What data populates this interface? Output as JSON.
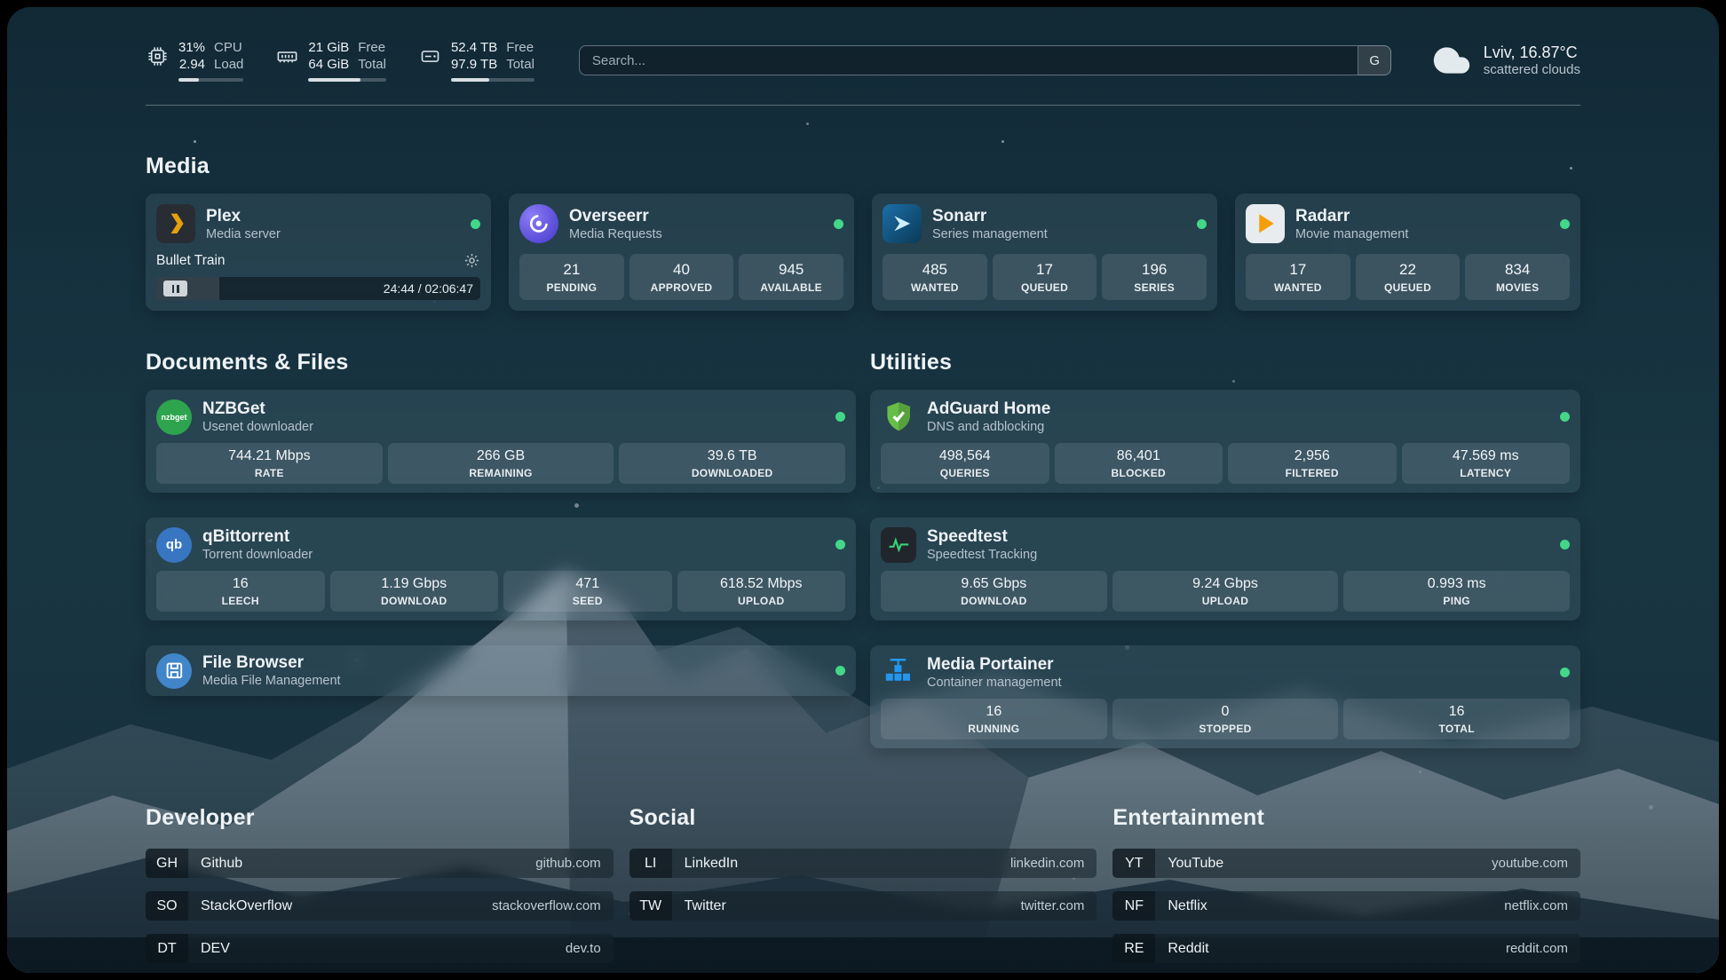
{
  "colors": {
    "status_online": "#43d787",
    "page_tint": "#16323f",
    "plex_accent": "#e5a00d",
    "adguard_green": "#68bd49"
  },
  "topbar": {
    "cpu": {
      "icon": "cpu-chip-icon",
      "value1": "31%",
      "value2": "2.94",
      "label1": "CPU",
      "label2": "Load",
      "percent": 31
    },
    "memory": {
      "icon": "memory-icon",
      "value1": "21 GiB",
      "value2": "64 GiB",
      "label1": "Free",
      "label2": "Total",
      "percent": 67
    },
    "disk": {
      "icon": "disk-icon",
      "value1": "52.4 TB",
      "value2": "97.9 TB",
      "label1": "Free",
      "label2": "Total",
      "percent": 46
    },
    "search": {
      "placeholder": "Search...",
      "provider_label": "G"
    },
    "weather": {
      "icon": "cloud-icon",
      "location": "Lviv, 16.87°C",
      "condition": "scattered clouds"
    }
  },
  "sections": {
    "media": "Media",
    "documents": "Documents & Files",
    "utilities": "Utilities",
    "developer": "Developer",
    "social": "Social",
    "entertainment": "Entertainment"
  },
  "services": {
    "plex": {
      "name": "Plex",
      "description": "Media server",
      "status": "online",
      "now_playing": "Bullet Train",
      "time": "24:44 / 02:06:47",
      "progress_percent": 19.5
    },
    "overseerr": {
      "name": "Overseerr",
      "description": "Media Requests",
      "status": "online",
      "stats": [
        {
          "value": "21",
          "label": "PENDING"
        },
        {
          "value": "40",
          "label": "APPROVED"
        },
        {
          "value": "945",
          "label": "AVAILABLE"
        }
      ]
    },
    "sonarr": {
      "name": "Sonarr",
      "description": "Series management",
      "status": "online",
      "stats": [
        {
          "value": "485",
          "label": "WANTED"
        },
        {
          "value": "17",
          "label": "QUEUED"
        },
        {
          "value": "196",
          "label": "SERIES"
        }
      ]
    },
    "radarr": {
      "name": "Radarr",
      "description": "Movie management",
      "status": "online",
      "stats": [
        {
          "value": "17",
          "label": "WANTED"
        },
        {
          "value": "22",
          "label": "QUEUED"
        },
        {
          "value": "834",
          "label": "MOVIES"
        }
      ]
    },
    "nzbget": {
      "name": "NZBGet",
      "description": "Usenet downloader",
      "status": "online",
      "stats": [
        {
          "value": "744.21 Mbps",
          "label": "RATE"
        },
        {
          "value": "266 GB",
          "label": "REMAINING"
        },
        {
          "value": "39.6 TB",
          "label": "DOWNLOADED"
        }
      ]
    },
    "qbittorrent": {
      "name": "qBittorrent",
      "description": "Torrent downloader",
      "status": "online",
      "stats": [
        {
          "value": "16",
          "label": "LEECH"
        },
        {
          "value": "1.19 Gbps",
          "label": "DOWNLOAD"
        },
        {
          "value": "471",
          "label": "SEED"
        },
        {
          "value": "618.52 Mbps",
          "label": "UPLOAD"
        }
      ]
    },
    "filebrowser": {
      "name": "File Browser",
      "description": "Media File Management",
      "status": "online"
    },
    "adguard": {
      "name": "AdGuard Home",
      "description": "DNS and adblocking",
      "status": "online",
      "stats": [
        {
          "value": "498,564",
          "label": "QUERIES"
        },
        {
          "value": "86,401",
          "label": "BLOCKED"
        },
        {
          "value": "2,956",
          "label": "FILTERED"
        },
        {
          "value": "47.569 ms",
          "label": "LATENCY"
        }
      ]
    },
    "speedtest": {
      "name": "Speedtest",
      "description": "Speedtest Tracking",
      "status": "online",
      "stats": [
        {
          "value": "9.65 Gbps",
          "label": "DOWNLOAD"
        },
        {
          "value": "9.24 Gbps",
          "label": "UPLOAD"
        },
        {
          "value": "0.993 ms",
          "label": "PING"
        }
      ]
    },
    "portainer": {
      "name": "Media Portainer",
      "description": "Container management",
      "status": "online",
      "stats": [
        {
          "value": "16",
          "label": "RUNNING"
        },
        {
          "value": "0",
          "label": "STOPPED"
        },
        {
          "value": "16",
          "label": "TOTAL"
        }
      ]
    }
  },
  "bookmarks": {
    "developer": [
      {
        "abbr": "GH",
        "name": "Github",
        "url": "github.com"
      },
      {
        "abbr": "SO",
        "name": "StackOverflow",
        "url": "stackoverflow.com"
      },
      {
        "abbr": "DT",
        "name": "DEV",
        "url": "dev.to"
      }
    ],
    "social": [
      {
        "abbr": "LI",
        "name": "LinkedIn",
        "url": "linkedin.com"
      },
      {
        "abbr": "TW",
        "name": "Twitter",
        "url": "twitter.com"
      }
    ],
    "entertainment": [
      {
        "abbr": "YT",
        "name": "YouTube",
        "url": "youtube.com"
      },
      {
        "abbr": "NF",
        "name": "Netflix",
        "url": "netflix.com"
      },
      {
        "abbr": "RE",
        "name": "Reddit",
        "url": "reddit.com"
      }
    ]
  }
}
